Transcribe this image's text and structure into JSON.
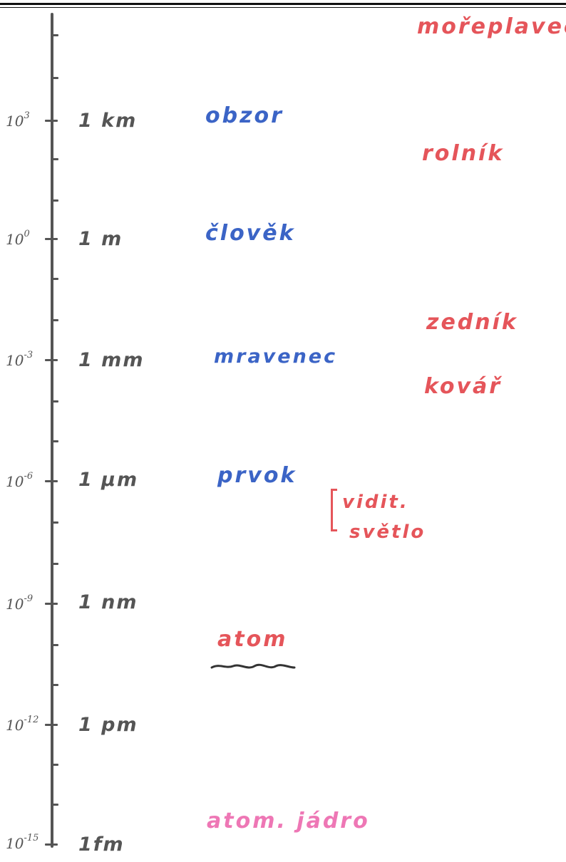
{
  "scale": {
    "levels": [
      {
        "exp_base": "10",
        "exp_power": "3",
        "unit": "1 km"
      },
      {
        "exp_base": "10",
        "exp_power": "0",
        "unit": "1 m"
      },
      {
        "exp_base": "10",
        "exp_power": "-3",
        "unit": "1 mm"
      },
      {
        "exp_base": "10",
        "exp_power": "-6",
        "unit": "1 μm"
      },
      {
        "exp_base": "10",
        "exp_power": "-9",
        "unit": "1 nm"
      },
      {
        "exp_base": "10",
        "exp_power": "-12",
        "unit": "1 pm"
      },
      {
        "exp_base": "10",
        "exp_power": "-15",
        "unit": "1fm"
      }
    ]
  },
  "objects": {
    "obzor": "obzor",
    "clovek": "člověk",
    "mravenec": "mravenec",
    "prvok": "prvok",
    "atom": "atom",
    "atom_jadro": "atom. jádro"
  },
  "wavelengths": {
    "moreplavec": "mořeplavec",
    "rolnik": "rolník",
    "zednik": "zedník",
    "kovar": "kovář",
    "visible_line1": "vidit.",
    "visible_line2": "světlo"
  },
  "colors": {
    "axis": "#555555",
    "objects": "#3b64c6",
    "waves": "#e5555a",
    "nucleus": "#ee77b5"
  }
}
